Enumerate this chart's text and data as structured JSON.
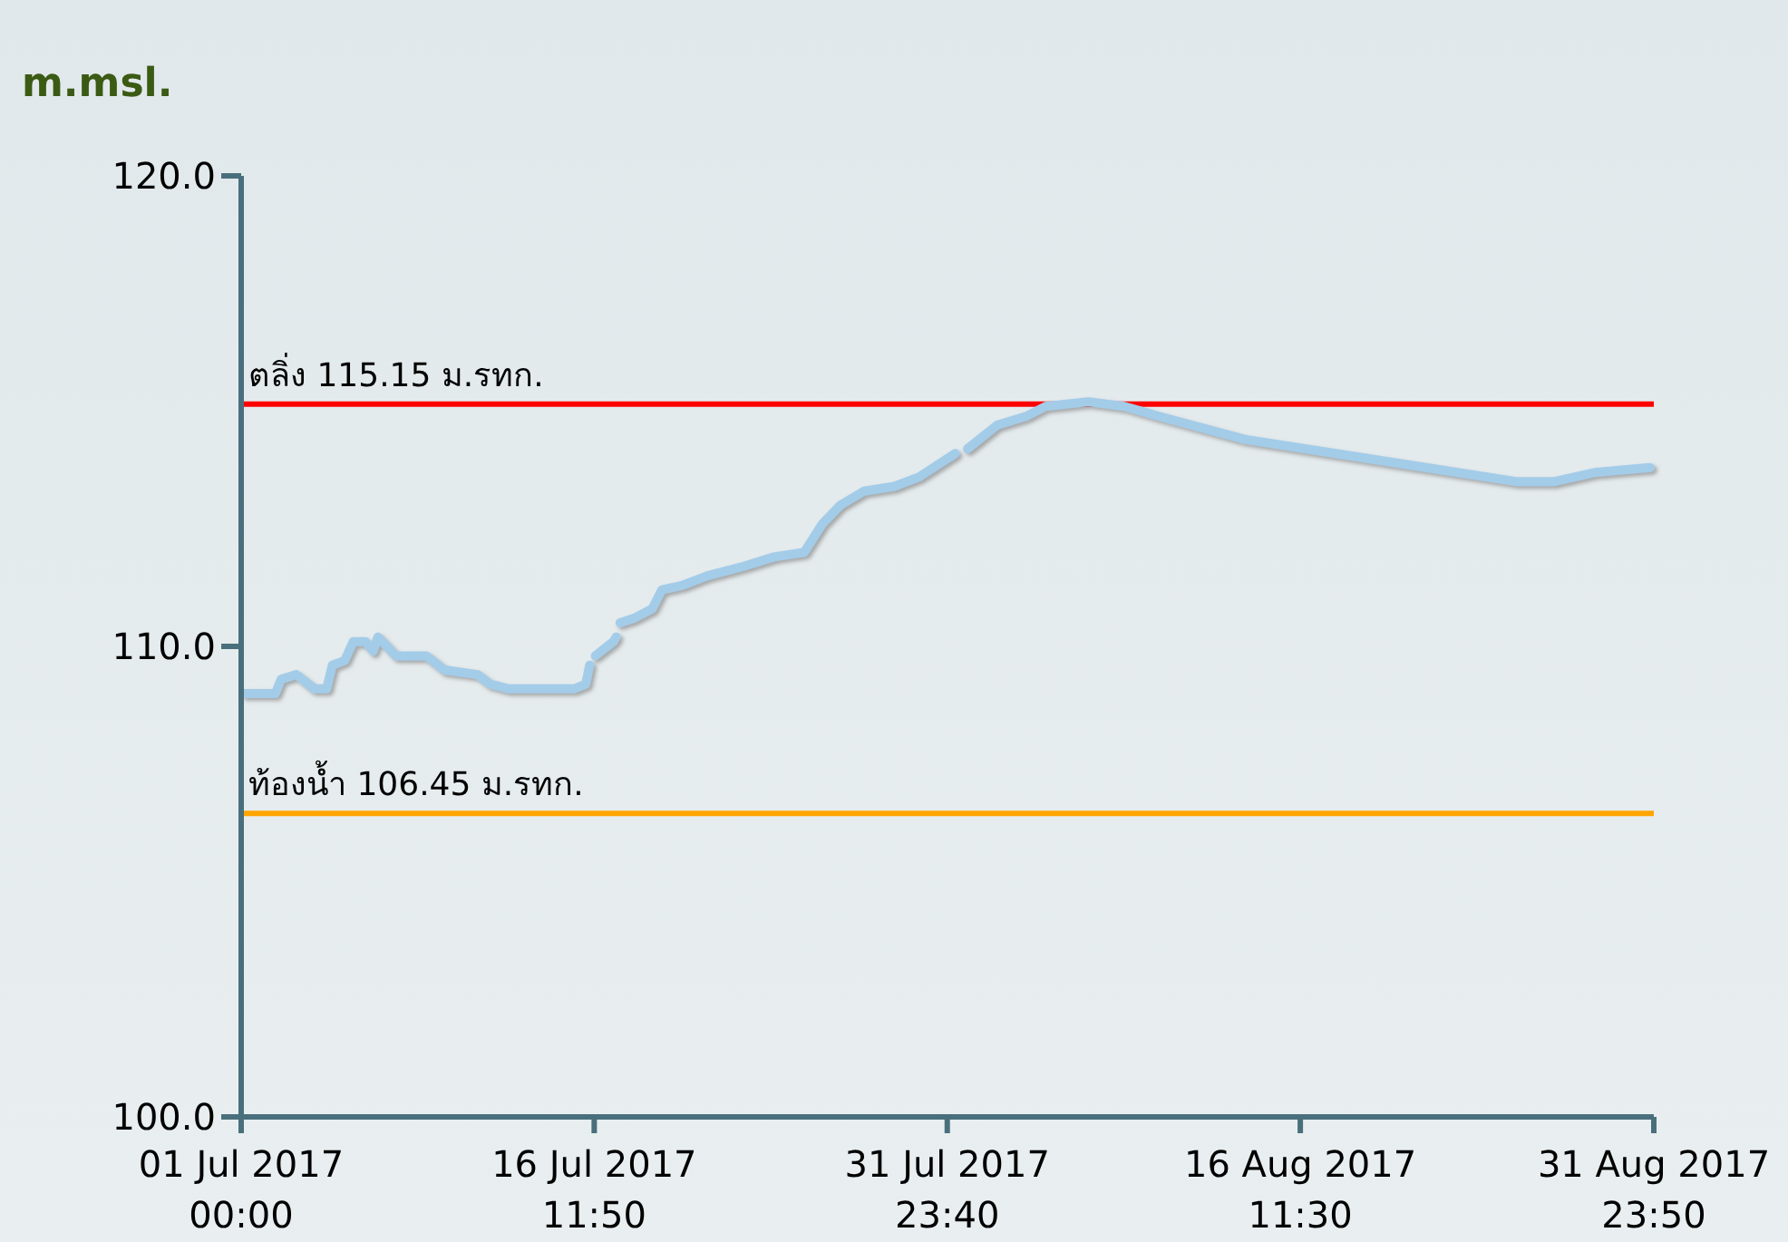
{
  "chart_data": {
    "type": "line",
    "ylabel": "m.msl.",
    "xlim": [
      "2017-07-01T00:00",
      "2017-08-31T23:50"
    ],
    "xticks": [
      {
        "value": "2017-07-01T00:00",
        "label": "01 Jul 2017\n00:00"
      },
      {
        "value": "2017-07-16T11:50",
        "label": "16 Jul 2017\n11:50"
      },
      {
        "value": "2017-07-31T23:40",
        "label": "31 Jul 2017\n23:40"
      },
      {
        "value": "2017-08-16T11:30",
        "label": "16 Aug 2017\n11:30"
      },
      {
        "value": "2017-08-31T23:50",
        "label": "31 Aug 2017\n23:50"
      }
    ],
    "ylim": [
      100,
      120
    ],
    "yticks": [
      {
        "value": 100,
        "label": "100.0"
      },
      {
        "value": 110,
        "label": "110.0"
      },
      {
        "value": 120,
        "label": "120.0"
      }
    ],
    "x": [
      "2017-07-01T04:00",
      "2017-07-02T12:00",
      "2017-07-02T18:00",
      "2017-07-03T10:00",
      "2017-07-04T05:00",
      "2017-07-04T18:00",
      "2017-07-05T00:00",
      "2017-07-05T13:00",
      "2017-07-05T22:00",
      "2017-07-06T11:00",
      "2017-07-06T19:00",
      "2017-07-07T00:00",
      "2017-07-07T19:00",
      "2017-07-09T03:00",
      "2017-07-09T22:00",
      "2017-07-11T09:00",
      "2017-07-11T22:00",
      "2017-07-12T17:00",
      "2017-07-14T13:00",
      "2017-07-15T15:00",
      "2017-07-16T03:00",
      "2017-07-16T07:00",
      "2017-07-16T09:00",
      "2017-07-16T13:00",
      "2017-07-17T08:00",
      "2017-07-17T11:00",
      "2017-07-17T12:00",
      "2017-07-17T15:00",
      "2017-07-18T06:00",
      "2017-07-19T01:00",
      "2017-07-19T11:00",
      "2017-07-20T09:00",
      "2017-07-21T11:00",
      "2017-07-23T01:00",
      "2017-07-24T09:00",
      "2017-07-25T17:00",
      "2017-07-26T12:00",
      "2017-07-27T07:00",
      "2017-07-28T08:00",
      "2017-07-29T16:00",
      "2017-07-30T18:00",
      "2017-08-01T08:00",
      "2017-08-01T12:00",
      "2017-08-01T21:00",
      "2017-08-03T04:00",
      "2017-08-04T12:00",
      "2017-08-05T07:00",
      "2017-08-07T04:00",
      "2017-08-08T18:00",
      "2017-08-10T05:00",
      "2017-08-14T01:00",
      "2017-08-18T01:00",
      "2017-08-22T00:00",
      "2017-08-26T00:00",
      "2017-08-27T14:00",
      "2017-08-29T11:00",
      "2017-08-31T20:00"
    ],
    "series": [
      {
        "color": "#a3cce9",
        "values": [
          109.0,
          109.0,
          109.3,
          109.4,
          109.1,
          109.1,
          109.6,
          109.7,
          110.1,
          110.1,
          109.9,
          110.2,
          109.8,
          109.8,
          109.5,
          109.4,
          109.2,
          109.1,
          109.1,
          109.1,
          109.2,
          109.6,
          null,
          109.8,
          110.1,
          110.2,
          null,
          110.5,
          110.6,
          110.8,
          111.2,
          111.3,
          111.5,
          111.7,
          111.9,
          112.0,
          112.6,
          113.0,
          113.3,
          113.4,
          113.6,
          114.1,
          null,
          114.2,
          114.7,
          114.9,
          115.1,
          115.2,
          115.1,
          114.9,
          114.4,
          114.1,
          113.8,
          113.5,
          113.5,
          113.7,
          113.8
        ]
      }
    ],
    "ref_lines": [
      {
        "axis": "y",
        "value": 115.15,
        "label": "ตลิ่ง 115.15 ม.รทก.",
        "color": "#ff0000"
      },
      {
        "axis": "y",
        "value": 106.45,
        "label": "ท้องน้ำ 106.45 ม.รทก.",
        "color": "#ffa500"
      }
    ]
  }
}
